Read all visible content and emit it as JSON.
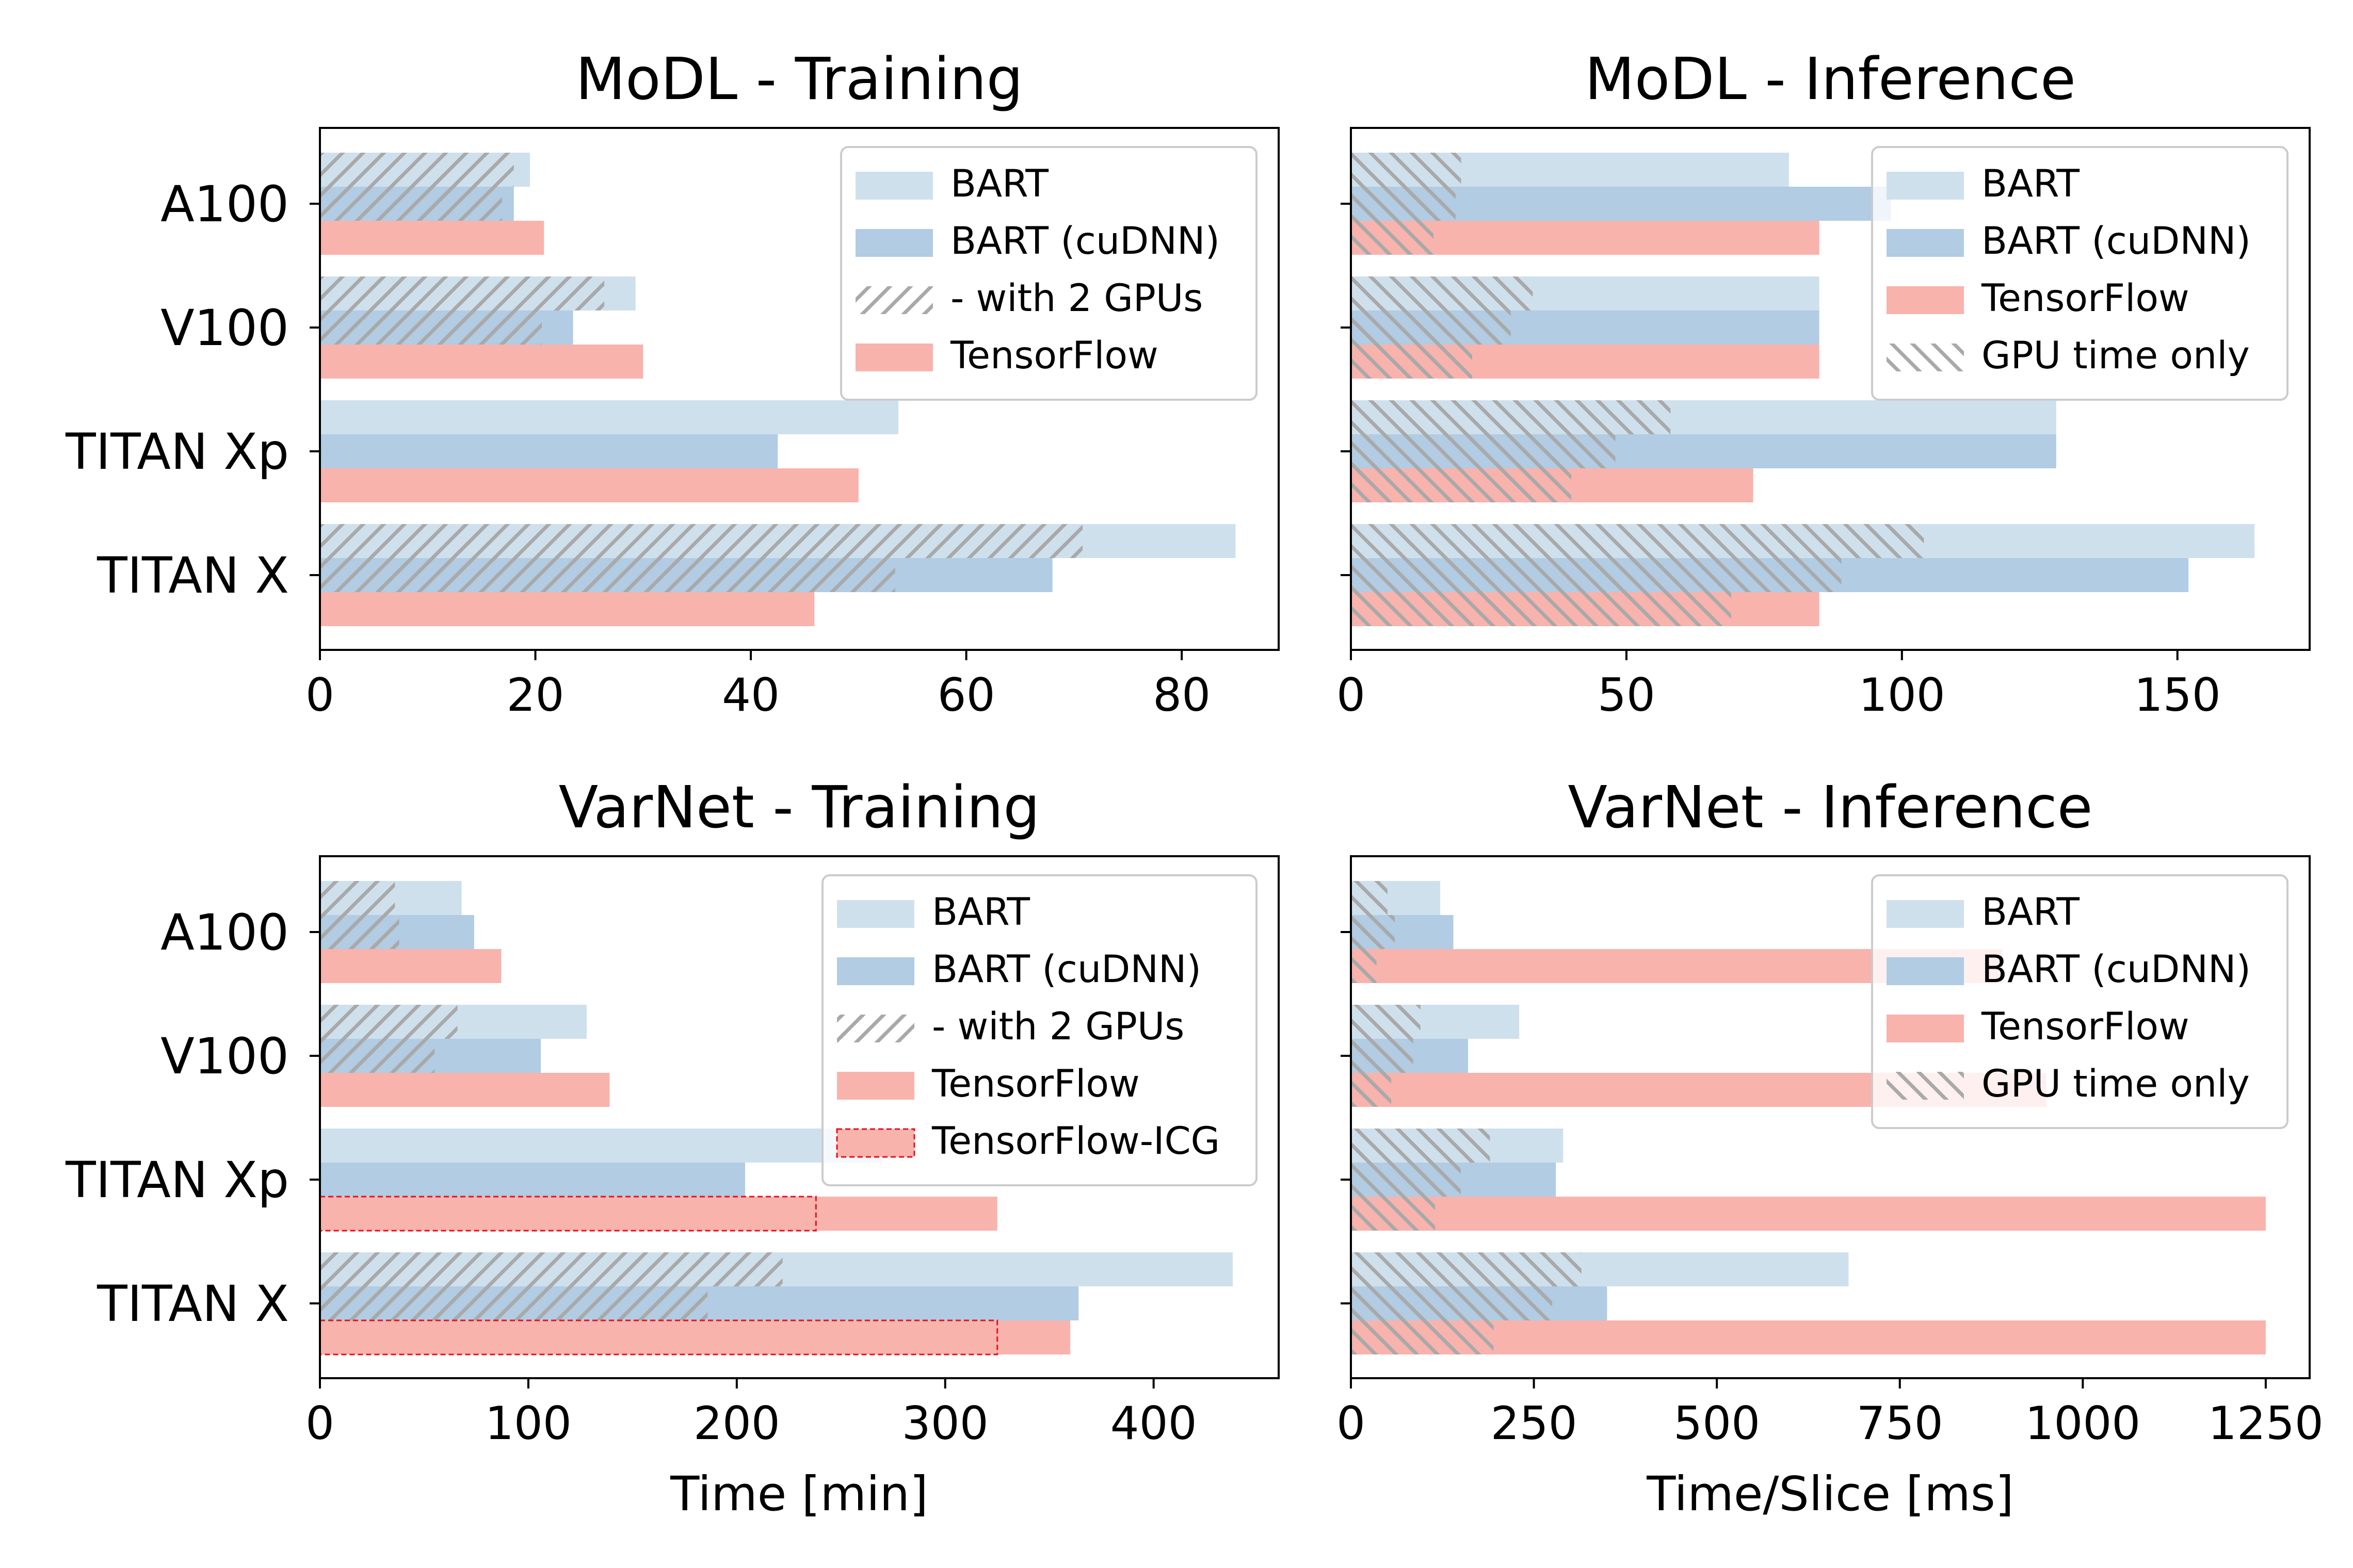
{
  "colors": {
    "bart": "#cfe0ed",
    "bart_cudnn": "#b1cce3",
    "tensorflow": "#f8b3ad",
    "hatch": "#b0b0b0",
    "icg_outline": "#e8101e"
  },
  "chart_data": [
    {
      "type": "bar",
      "orientation": "horizontal",
      "title": "MoDL - Training",
      "categories": [
        "A100",
        "V100",
        "TITAN Xp",
        "TITAN X"
      ],
      "xlim": [
        0,
        89
      ],
      "xticks": [
        "0",
        "20",
        "40",
        "60",
        "80"
      ],
      "xlabel": "",
      "series": [
        {
          "name": "BART",
          "values": [
            19.5,
            29.3,
            53.7,
            85.0
          ]
        },
        {
          "name": "BART (cuDNN)",
          "values": [
            18.0,
            23.5,
            42.5,
            68.0
          ]
        },
        {
          "name": "TensorFlow",
          "values": [
            20.8,
            30.0,
            50.0,
            45.9
          ]
        }
      ],
      "hatched": {
        "name": "- with 2 GPUs",
        "bart": [
          18.0,
          26.4,
          null,
          70.8
        ],
        "bart_cudnn": [
          16.9,
          20.6,
          null,
          53.4
        ]
      },
      "legend": {
        "position": "top-right",
        "entries": [
          "BART",
          "BART (cuDNN)",
          "- with 2 GPUs",
          "TensorFlow"
        ]
      }
    },
    {
      "type": "bar",
      "orientation": "horizontal",
      "title": "MoDL - Inference",
      "categories": [
        "A100",
        "V100",
        "TITAN Xp",
        "TITAN X"
      ],
      "xlim": [
        0,
        174
      ],
      "xticks": [
        "0",
        "50",
        "100",
        "150"
      ],
      "xlabel": "",
      "series": [
        {
          "name": "BART",
          "values": [
            79.5,
            85.0,
            128.0,
            164.0
          ]
        },
        {
          "name": "BART (cuDNN)",
          "values": [
            98.0,
            85.0,
            128.0,
            152.0
          ]
        },
        {
          "name": "TensorFlow",
          "values": [
            85.0,
            85.0,
            73.0,
            85.0
          ]
        }
      ],
      "hatched": {
        "name": "GPU time only",
        "bart": [
          20.0,
          33.0,
          58.0,
          104.0
        ],
        "bart_cudnn": [
          19.0,
          29.0,
          48.0,
          89.0
        ],
        "tensorflow": [
          15.0,
          22.0,
          40.0,
          69.0
        ]
      },
      "legend": {
        "position": "top-right",
        "entries": [
          "BART",
          "BART (cuDNN)",
          "TensorFlow",
          "GPU time only"
        ]
      }
    },
    {
      "type": "bar",
      "orientation": "horizontal",
      "title": "VarNet - Training",
      "categories": [
        "A100",
        "V100",
        "TITAN Xp",
        "TITAN X"
      ],
      "xlim": [
        0,
        460
      ],
      "xticks": [
        "0",
        "100",
        "200",
        "300",
        "400"
      ],
      "xlabel": "Time [min]",
      "series": [
        {
          "name": "BART",
          "values": [
            68.0,
            128.0,
            270.0,
            438.0
          ]
        },
        {
          "name": "BART (cuDNN)",
          "values": [
            74.0,
            106.0,
            204.0,
            364.0
          ]
        },
        {
          "name": "TensorFlow",
          "values": [
            87.0,
            139.0,
            325.0,
            360.0
          ]
        }
      ],
      "hatched": {
        "name": "- with 2 GPUs",
        "bart": [
          36.0,
          66.0,
          null,
          222.0
        ],
        "bart_cudnn": [
          38.0,
          55.0,
          null,
          186.0
        ]
      },
      "icg": {
        "name": "TensorFlow-ICG",
        "values": [
          null,
          null,
          238.0,
          325.0
        ]
      },
      "legend": {
        "position": "top-right",
        "entries": [
          "BART",
          "BART (cuDNN)",
          "- with 2 GPUs",
          "TensorFlow",
          "TensorFlow-ICG"
        ]
      }
    },
    {
      "type": "bar",
      "orientation": "horizontal",
      "title": "VarNet - Inference",
      "categories": [
        "A100",
        "V100",
        "TITAN Xp",
        "TITAN X"
      ],
      "xlim": [
        0,
        1310
      ],
      "xticks": [
        "0",
        "250",
        "500",
        "750",
        "1000",
        "1250"
      ],
      "xlabel": "Time/Slice [ms]",
      "series": [
        {
          "name": "BART",
          "values": [
            122.0,
            230.0,
            290.0,
            680.0
          ]
        },
        {
          "name": "BART (cuDNN)",
          "values": [
            140.0,
            160.0,
            280.0,
            350.0
          ]
        },
        {
          "name": "TensorFlow",
          "values": [
            890.0,
            950.0,
            1250.0,
            1250.0
          ]
        }
      ],
      "hatched": {
        "name": "GPU time only",
        "bart": [
          50.0,
          95.0,
          190.0,
          315.0
        ],
        "bart_cudnn": [
          60.0,
          85.0,
          150.0,
          275.0
        ],
        "tensorflow": [
          35.0,
          55.0,
          115.0,
          195.0
        ]
      },
      "legend": {
        "position": "top-right",
        "entries": [
          "BART",
          "BART (cuDNN)",
          "TensorFlow",
          "GPU time only"
        ]
      }
    }
  ]
}
